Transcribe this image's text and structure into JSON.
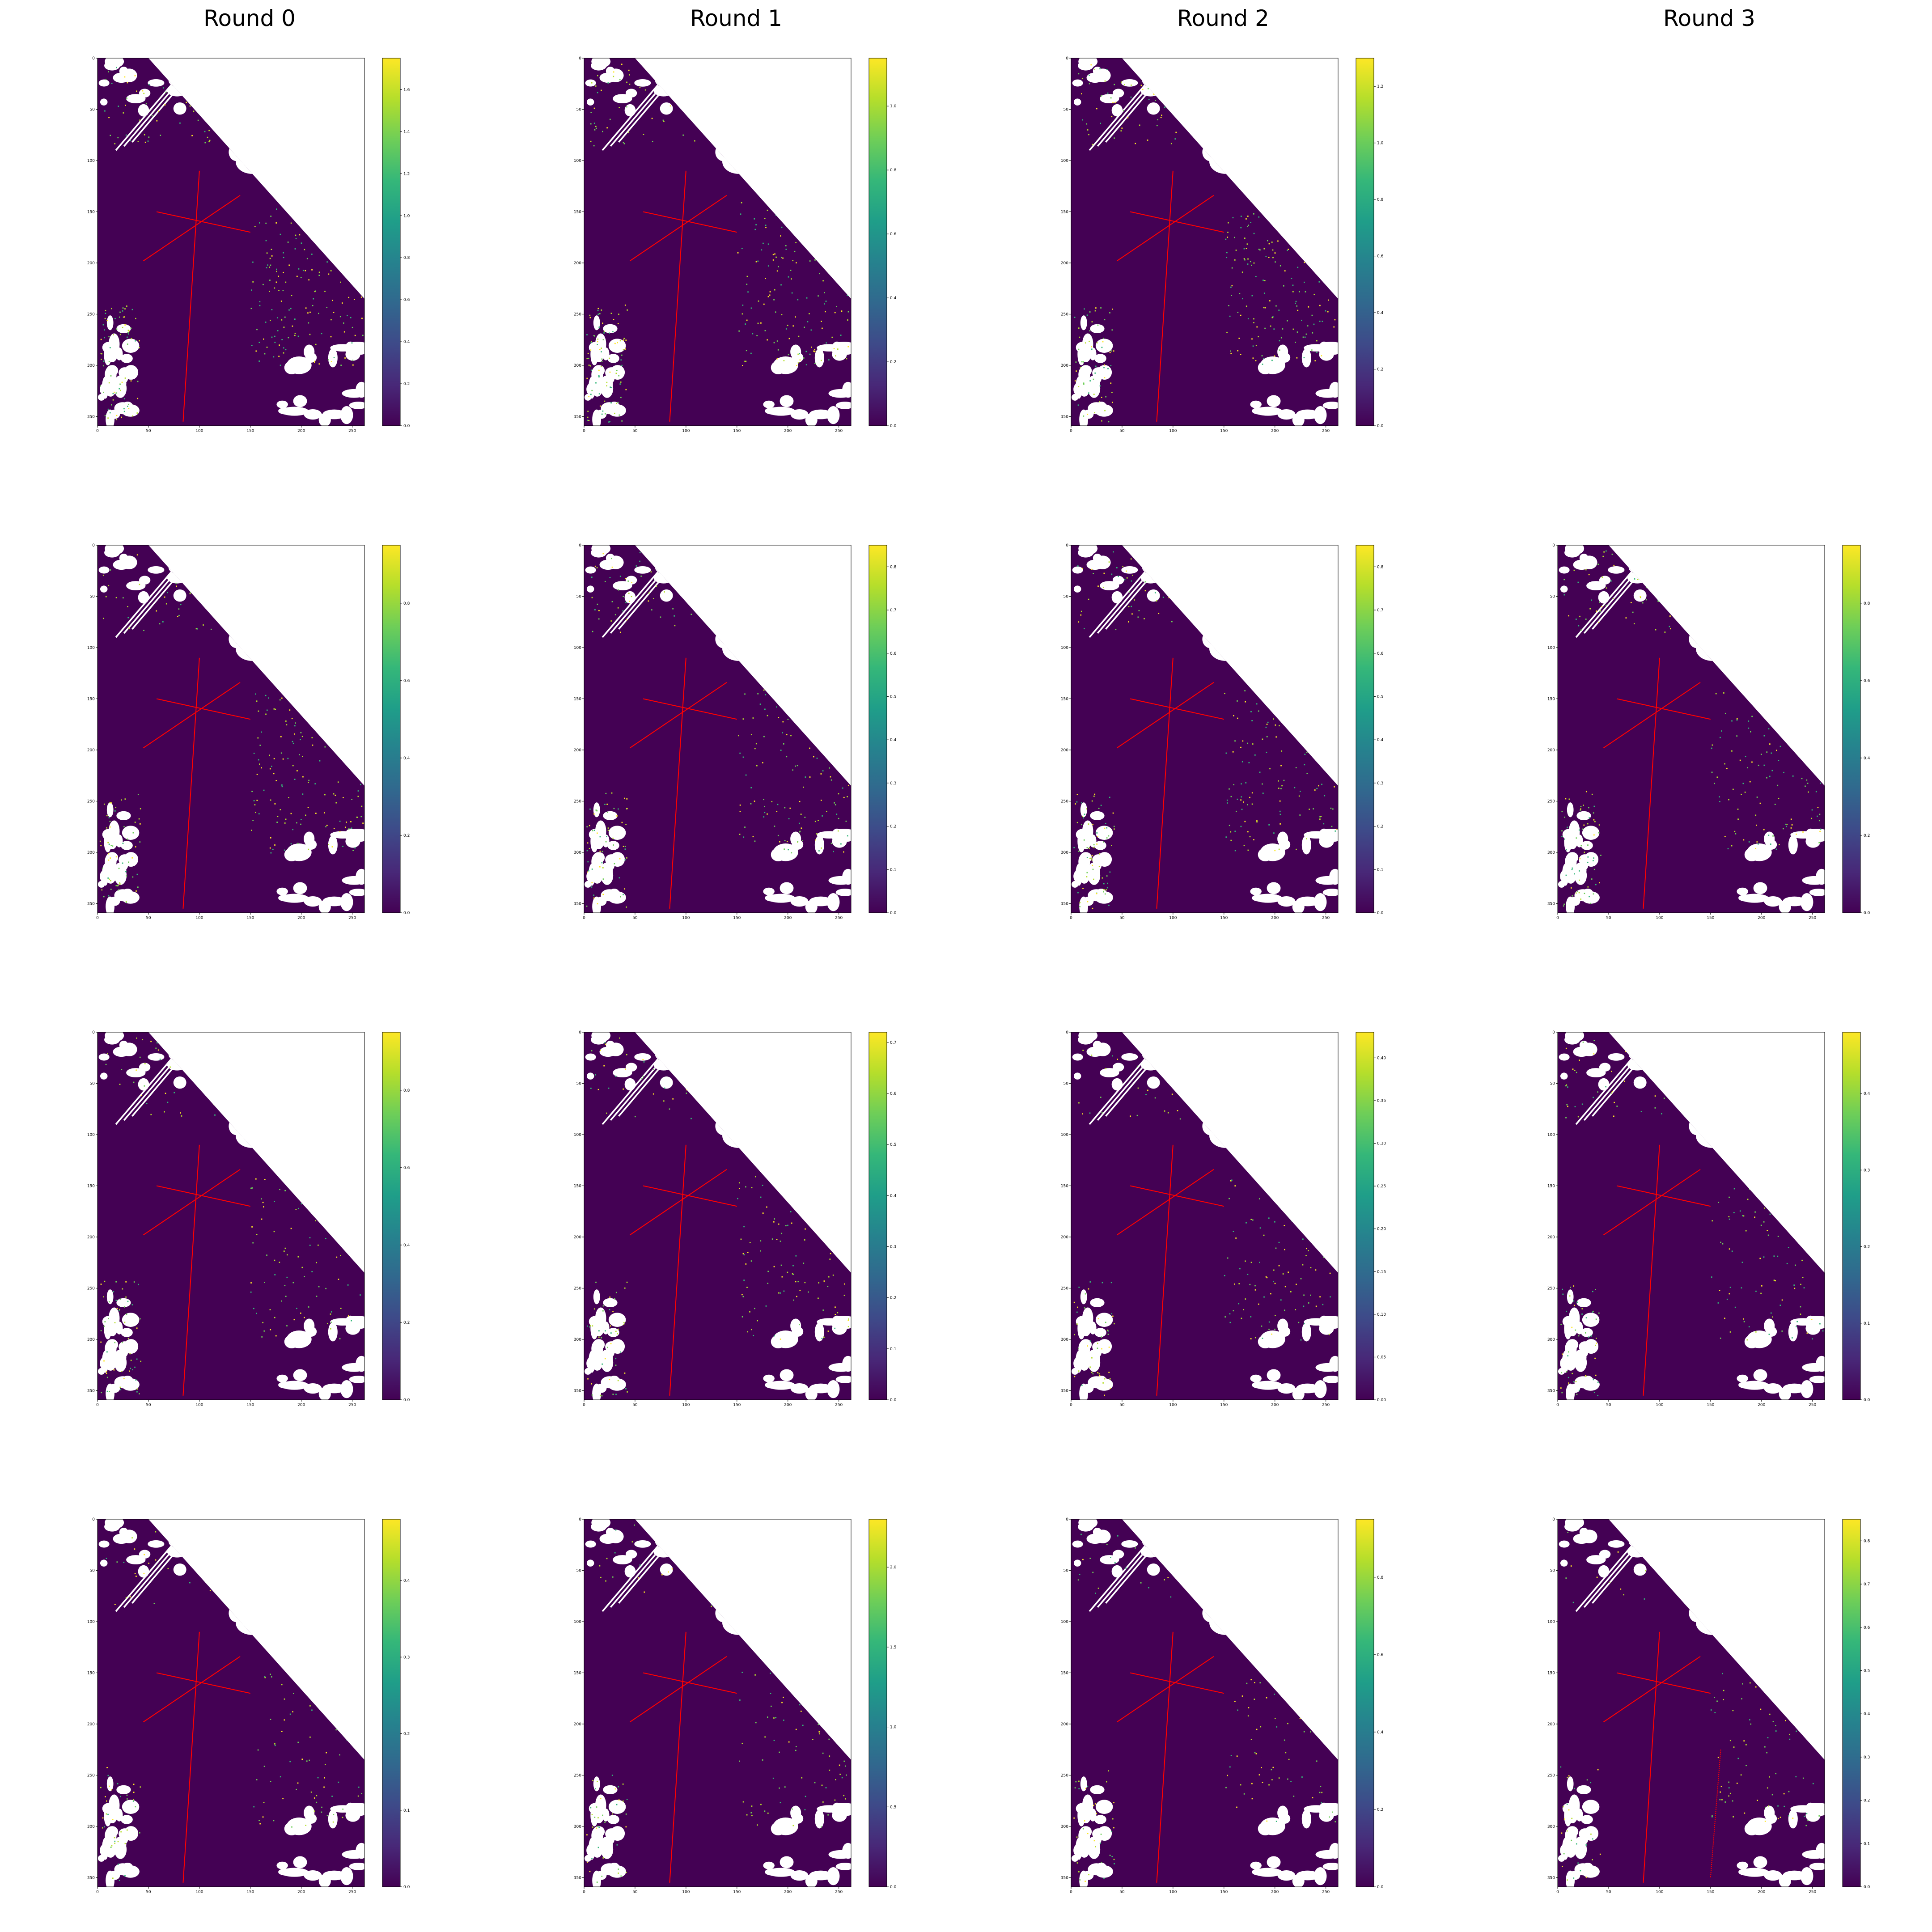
{
  "figure": {
    "column_titles": [
      "Round 0",
      "Round 1",
      "Round 2",
      "Round 3"
    ]
  },
  "colors": {
    "field": "#440154",
    "background": "#ffffff",
    "overlay_lines": "#ff0000",
    "colormap": [
      "#440154",
      "#482878",
      "#3e4a89",
      "#31688e",
      "#26828e",
      "#1f9e89",
      "#35b779",
      "#6ece58",
      "#b5de2b",
      "#fde725"
    ]
  },
  "chart_data": {
    "type": "heatmap",
    "colormap": "viridis",
    "x_ticks": [
      "0",
      "50",
      "100",
      "150",
      "200",
      "250"
    ],
    "y_ticks": [
      "0",
      "50",
      "100",
      "150",
      "200",
      "250",
      "300",
      "350"
    ],
    "xlim": [
      0,
      262
    ],
    "ylim": [
      359,
      0
    ],
    "panels": [
      {
        "row": 0,
        "col": 0,
        "present": true,
        "cbar_ticks": [
          "0.0",
          "0.2",
          "0.4",
          "0.6",
          "0.8",
          "1.0",
          "1.2",
          "1.4",
          "1.6"
        ],
        "cbar_max": 1.75
      },
      {
        "row": 0,
        "col": 1,
        "present": true,
        "cbar_ticks": [
          "0.0",
          "0.2",
          "0.4",
          "0.6",
          "0.8",
          "1.0"
        ],
        "cbar_max": 1.15
      },
      {
        "row": 0,
        "col": 2,
        "present": true,
        "cbar_ticks": [
          "0.0",
          "0.2",
          "0.4",
          "0.6",
          "0.8",
          "1.0",
          "1.2"
        ],
        "cbar_max": 1.3
      },
      {
        "row": 0,
        "col": 3,
        "present": false
      },
      {
        "row": 1,
        "col": 0,
        "present": true,
        "cbar_ticks": [
          "0.0",
          "0.2",
          "0.4",
          "0.6",
          "0.8"
        ],
        "cbar_max": 0.95
      },
      {
        "row": 1,
        "col": 1,
        "present": true,
        "cbar_ticks": [
          "0.0",
          "0.1",
          "0.2",
          "0.3",
          "0.4",
          "0.5",
          "0.6",
          "0.7",
          "0.8"
        ],
        "cbar_max": 0.85
      },
      {
        "row": 1,
        "col": 2,
        "present": true,
        "cbar_ticks": [
          "0.0",
          "0.1",
          "0.2",
          "0.3",
          "0.4",
          "0.5",
          "0.6",
          "0.7",
          "0.8"
        ],
        "cbar_max": 0.85
      },
      {
        "row": 1,
        "col": 3,
        "present": true,
        "cbar_ticks": [
          "0.0",
          "0.2",
          "0.4",
          "0.6",
          "0.8"
        ],
        "cbar_max": 0.95
      },
      {
        "row": 2,
        "col": 0,
        "present": true,
        "cbar_ticks": [
          "0.0",
          "0.2",
          "0.4",
          "0.6",
          "0.8"
        ],
        "cbar_max": 0.95
      },
      {
        "row": 2,
        "col": 1,
        "present": true,
        "cbar_ticks": [
          "0.0",
          "0.1",
          "0.2",
          "0.3",
          "0.4",
          "0.5",
          "0.6",
          "0.7"
        ],
        "cbar_max": 0.72
      },
      {
        "row": 2,
        "col": 2,
        "present": true,
        "cbar_ticks": [
          "0.00",
          "0.05",
          "0.10",
          "0.15",
          "0.20",
          "0.25",
          "0.30",
          "0.35",
          "0.40"
        ],
        "cbar_max": 0.43
      },
      {
        "row": 2,
        "col": 3,
        "present": true,
        "cbar_ticks": [
          "0.0",
          "0.1",
          "0.2",
          "0.3",
          "0.4"
        ],
        "cbar_max": 0.48
      },
      {
        "row": 3,
        "col": 0,
        "present": true,
        "cbar_ticks": [
          "0.0",
          "0.1",
          "0.2",
          "0.3",
          "0.4"
        ],
        "cbar_max": 0.48
      },
      {
        "row": 3,
        "col": 1,
        "present": true,
        "cbar_ticks": [
          "0.0",
          "0.5",
          "1.0",
          "1.5",
          "2.0"
        ],
        "cbar_max": 2.3
      },
      {
        "row": 3,
        "col": 2,
        "present": true,
        "cbar_ticks": [
          "0.0",
          "0.2",
          "0.4",
          "0.6",
          "0.8"
        ],
        "cbar_max": 0.95
      },
      {
        "row": 3,
        "col": 3,
        "present": true,
        "cbar_ticks": [
          "0.0",
          "0.1",
          "0.2",
          "0.3",
          "0.4",
          "0.5",
          "0.6",
          "0.7",
          "0.8"
        ],
        "cbar_max": 0.85
      }
    ]
  }
}
